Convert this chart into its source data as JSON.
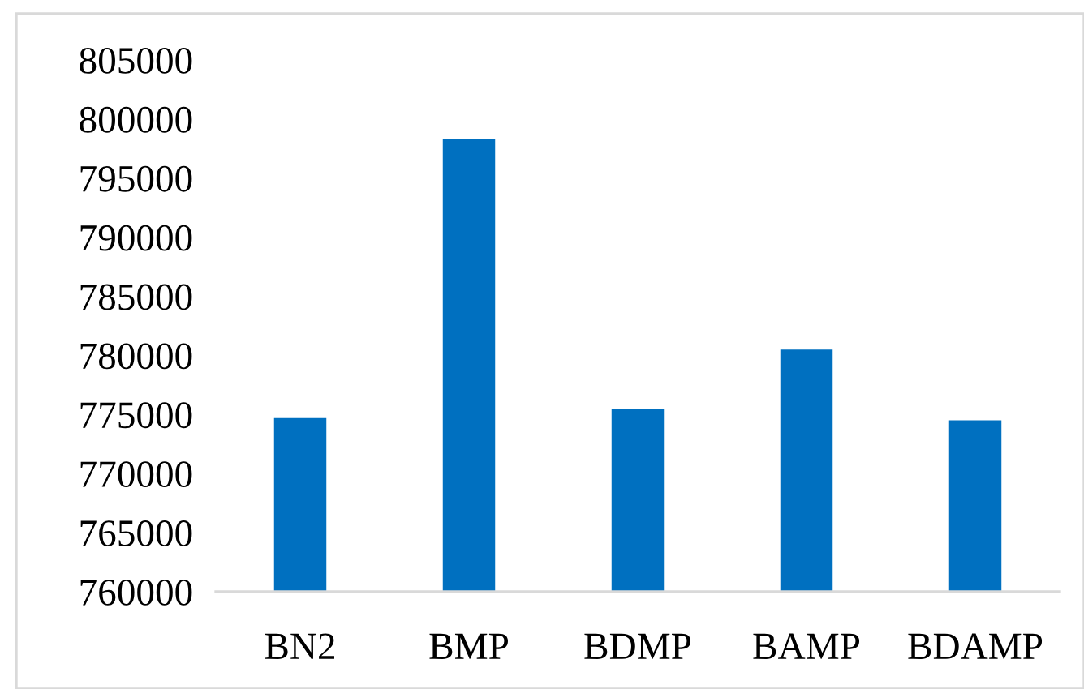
{
  "chart_data": {
    "type": "bar",
    "categories": [
      "BN2",
      "BMP",
      "BDMP",
      "BAMP",
      "BDAMP"
    ],
    "values": [
      774700,
      798300,
      775500,
      780500,
      774500
    ],
    "color": "#0070c0",
    "ylim": [
      760000,
      805000
    ],
    "yticks": [
      760000,
      765000,
      770000,
      775000,
      780000,
      785000,
      790000,
      795000,
      800000,
      805000
    ],
    "grid": false
  }
}
